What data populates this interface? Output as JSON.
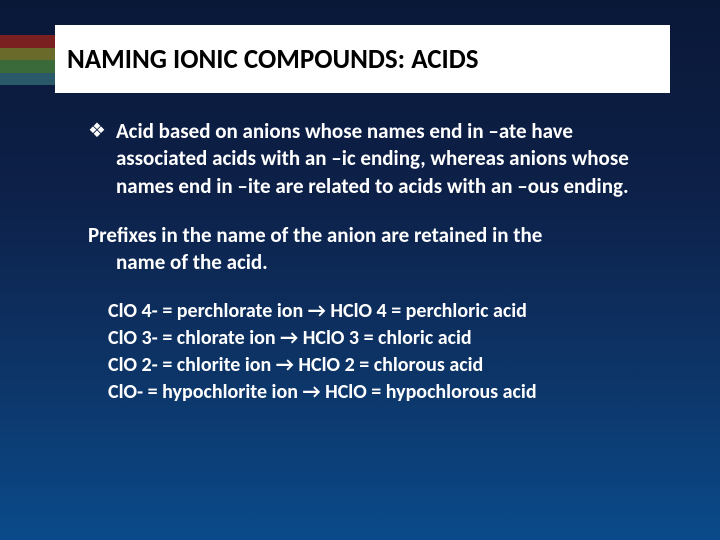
{
  "colors": {
    "bg_gradient_top": "#0a1838",
    "bg_gradient_bottom": "#0a4a8a",
    "title_box_bg": "#ffffff",
    "title_text": "#000000",
    "body_text": "#ffffff",
    "accent_colors": [
      "#7a2020",
      "#6a6a2a",
      "#3a6a3a",
      "#2a5a6a"
    ]
  },
  "typography": {
    "title_fontsize": 27,
    "body_fontsize": 21,
    "example_fontsize": 20,
    "font_family": "Calibri"
  },
  "title": "NAMING IONIC COMPOUNDS: ACIDS",
  "bullet_marker": "❖",
  "bullet_text": "Acid based on anions whose names end in –ate have associated acids with an –ic ending, whereas anions whose names end in –ite are related to acids with an –ous ending.",
  "prefix_line1": "Prefixes in the name of the anion are retained in the",
  "prefix_line2": "name of the acid.",
  "examples": [
    "ClO 4- = perchlorate ion → HClO 4 = perchloric acid",
    "ClO 3- = chlorate ion → HClO 3 = chloric acid",
    "ClO 2- = chlorite ion → HClO 2 = chlorous acid",
    "ClO- = hypochlorite ion → HClO = hypochlorous acid"
  ]
}
